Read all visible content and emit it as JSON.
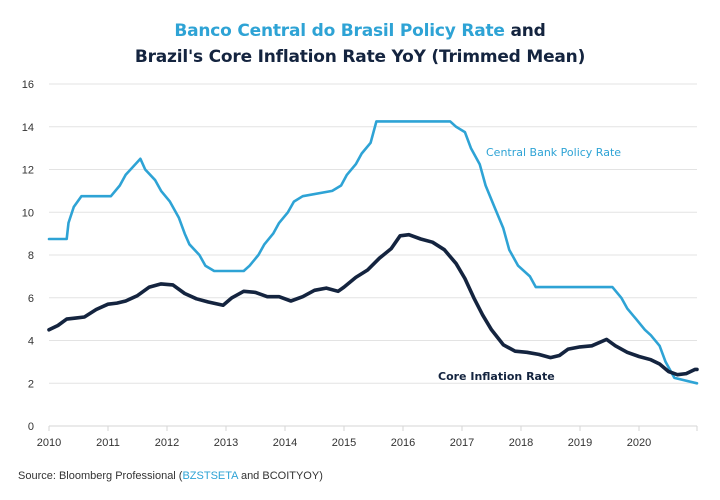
{
  "title": {
    "line1_highlight": "Banco Central do Brasil Policy Rate",
    "line1_rest": " and",
    "line2": "Brazil's Core Inflation Rate YoY (Trimmed Mean)"
  },
  "source": {
    "prefix": "Source: Bloomberg Professional (",
    "highlight": "BZSTSETA",
    "suffix": " and BCOITYOY)"
  },
  "colors": {
    "policy": "#2ea3d5",
    "core": "#14243f",
    "grid": "#e3e3e3"
  },
  "chart_data": {
    "type": "line",
    "title": "Banco Central do Brasil Policy Rate and Brazil's Core Inflation Rate YoY (Trimmed Mean)",
    "xlabel": "",
    "ylabel": "",
    "xlim": [
      2010,
      2021
    ],
    "ylim": [
      0,
      16
    ],
    "grid": true,
    "x_ticks": [
      "2010",
      "2011",
      "2012",
      "2013",
      "2014",
      "2015",
      "2016",
      "2017",
      "2018",
      "2019",
      "2020"
    ],
    "y_ticks": [
      "0",
      "2",
      "4",
      "6",
      "8",
      "10",
      "12",
      "14",
      "16"
    ],
    "series": [
      {
        "name": "Central Bank Policy Rate",
        "label_position": "upper-right",
        "step": true,
        "x": [
          2010.0,
          2010.3,
          2010.33,
          2010.42,
          2010.55,
          2011.05,
          2011.2,
          2011.3,
          2011.55,
          2011.63,
          2011.8,
          2011.9,
          2012.05,
          2012.2,
          2012.3,
          2012.38,
          2012.55,
          2012.65,
          2012.8,
          2013.3,
          2013.4,
          2013.55,
          2013.65,
          2013.8,
          2013.9,
          2014.05,
          2014.15,
          2014.3,
          2014.8,
          2014.95,
          2015.05,
          2015.2,
          2015.3,
          2015.45,
          2015.55,
          2016.8,
          2016.9,
          2017.05,
          2017.15,
          2017.3,
          2017.4,
          2017.55,
          2017.7,
          2017.8,
          2017.95,
          2018.15,
          2018.25,
          2019.55,
          2019.7,
          2019.8,
          2019.95,
          2020.1,
          2020.2,
          2020.35,
          2020.45,
          2020.6,
          2021.0
        ],
        "values": [
          8.75,
          8.75,
          9.5,
          10.25,
          10.75,
          10.75,
          11.25,
          11.75,
          12.5,
          12.0,
          11.5,
          11.0,
          10.5,
          9.75,
          9.0,
          8.5,
          8.0,
          7.5,
          7.25,
          7.25,
          7.5,
          8.0,
          8.5,
          9.0,
          9.5,
          10.0,
          10.5,
          10.75,
          11.0,
          11.25,
          11.75,
          12.25,
          12.75,
          13.25,
          14.25,
          14.25,
          14.0,
          13.75,
          13.0,
          12.25,
          11.25,
          10.25,
          9.25,
          8.25,
          7.5,
          7.0,
          6.5,
          6.5,
          6.0,
          5.5,
          5.0,
          4.5,
          4.25,
          3.75,
          3.0,
          2.25,
          2.0
        ]
      },
      {
        "name": "Core Inflation Rate",
        "label_position": "lower-middle",
        "step": false,
        "x": [
          2010.0,
          2010.15,
          2010.3,
          2010.45,
          2010.6,
          2010.8,
          2011.0,
          2011.15,
          2011.3,
          2011.5,
          2011.7,
          2011.9,
          2012.1,
          2012.3,
          2012.5,
          2012.7,
          2012.95,
          2013.1,
          2013.3,
          2013.5,
          2013.7,
          2013.9,
          2014.1,
          2014.3,
          2014.5,
          2014.7,
          2014.9,
          2015.0,
          2015.2,
          2015.4,
          2015.6,
          2015.8,
          2015.95,
          2016.1,
          2016.3,
          2016.5,
          2016.7,
          2016.9,
          2017.05,
          2017.2,
          2017.35,
          2017.5,
          2017.7,
          2017.9,
          2018.1,
          2018.3,
          2018.5,
          2018.65,
          2018.8,
          2019.0,
          2019.2,
          2019.45,
          2019.6,
          2019.8,
          2020.0,
          2020.2,
          2020.35,
          2020.5,
          2020.65,
          2020.8,
          2020.95,
          2021.0
        ],
        "values": [
          4.5,
          4.7,
          5.0,
          5.05,
          5.1,
          5.45,
          5.7,
          5.75,
          5.85,
          6.1,
          6.5,
          6.65,
          6.6,
          6.2,
          5.95,
          5.8,
          5.65,
          6.0,
          6.3,
          6.25,
          6.05,
          6.05,
          5.85,
          6.05,
          6.35,
          6.45,
          6.3,
          6.5,
          6.95,
          7.3,
          7.85,
          8.3,
          8.9,
          8.95,
          8.75,
          8.6,
          8.25,
          7.6,
          6.9,
          6.0,
          5.2,
          4.5,
          3.8,
          3.5,
          3.45,
          3.35,
          3.2,
          3.3,
          3.6,
          3.7,
          3.75,
          4.05,
          3.75,
          3.45,
          3.25,
          3.1,
          2.9,
          2.55,
          2.4,
          2.45,
          2.65,
          2.65
        ]
      }
    ]
  }
}
